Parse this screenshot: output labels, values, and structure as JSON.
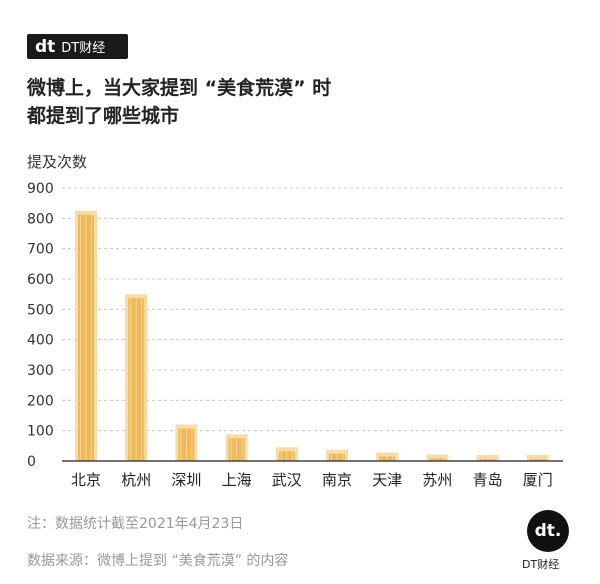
{
  "header": {
    "logo_mark": "dt",
    "logo_text": "DT财经",
    "title_line1": "微博上，当大家提到 “美食荒漠” 时",
    "title_line2": "都提到了哪些城市"
  },
  "footer": {
    "note": "注：数据统计截至2021年4月23日",
    "source": "数据来源：微博上提到 “美食荒漠” 的内容",
    "corner_mark": "dt.",
    "brand": "DT财经"
  },
  "colors": {
    "bar": "#f0b95a",
    "bar_light": "#f6dca8",
    "axis": "#444",
    "grid": "#bbb"
  },
  "chart_data": {
    "type": "bar",
    "title": "",
    "ylabel": "提及次数",
    "xlabel": "",
    "ylim": [
      0,
      900
    ],
    "yticks": [
      0,
      100,
      200,
      300,
      400,
      500,
      600,
      700,
      800,
      900
    ],
    "grid": true,
    "categories": [
      "北京",
      "杭州",
      "深圳",
      "上海",
      "武汉",
      "南京",
      "天津",
      "苏州",
      "青岛",
      "厦门"
    ],
    "values": [
      825,
      550,
      120,
      88,
      45,
      37,
      28,
      22,
      20,
      20
    ]
  }
}
